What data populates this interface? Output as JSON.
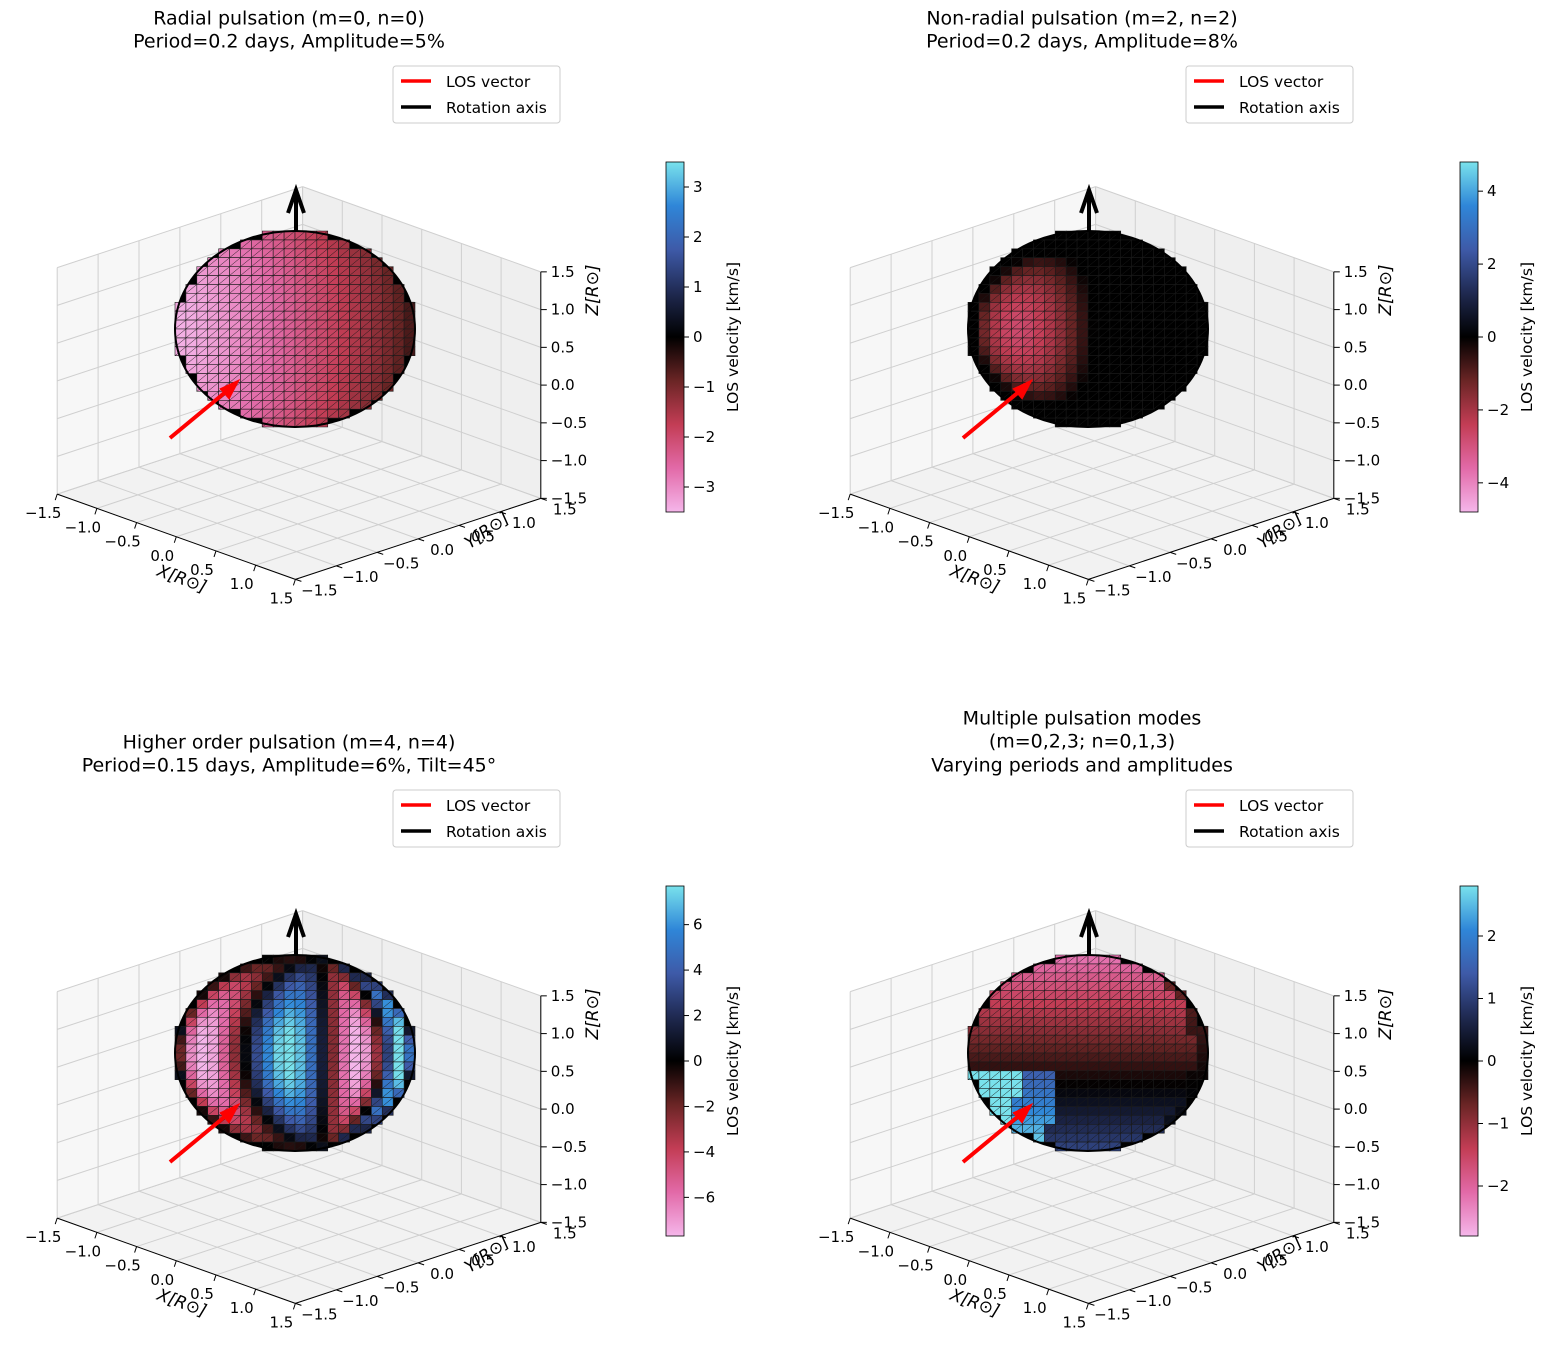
{
  "chart_data": [
    {
      "type": "surface3d",
      "title_lines": [
        "Radial pulsation (m=0, n=0)",
        "Period=0.2 days, Amplitude=5%"
      ],
      "xlabel": "X[R⊙]",
      "ylabel": "Y[R⊙]",
      "zlabel": "Z[R⊙]",
      "xlim": [
        -1.5,
        1.5
      ],
      "ylim": [
        -1.5,
        1.5
      ],
      "zlim": [
        -1.5,
        1.5
      ],
      "ticks": [
        "−1.5",
        "−1.0",
        "−0.5",
        "0.0",
        "0.5",
        "1.0",
        "1.5"
      ],
      "legend": [
        "LOS vector",
        "Rotation axis"
      ],
      "colorbar": {
        "label": "LOS velocity [km/s]",
        "range": [
          -3.5,
          3.5
        ],
        "ticks": [
          "3",
          "2",
          "1",
          "0",
          "−1",
          "−2",
          "−3"
        ],
        "tick_values": [
          3,
          2,
          1,
          0,
          -1,
          -2,
          -3
        ]
      },
      "mode": {
        "m": 0,
        "n": 0,
        "period_days": 0.2,
        "amplitude_pct": 5
      }
    },
    {
      "type": "surface3d",
      "title_lines": [
        "Non-radial pulsation (m=2, n=2)",
        "Period=0.2 days, Amplitude=8%"
      ],
      "xlabel": "X[R⊙]",
      "ylabel": "Y[R⊙]",
      "zlabel": "Z[R⊙]",
      "xlim": [
        -1.5,
        1.5
      ],
      "ylim": [
        -1.5,
        1.5
      ],
      "zlim": [
        -1.5,
        1.5
      ],
      "ticks": [
        "−1.5",
        "−1.0",
        "−0.5",
        "0.0",
        "0.5",
        "1.0",
        "1.5"
      ],
      "legend": [
        "LOS vector",
        "Rotation axis"
      ],
      "colorbar": {
        "label": "LOS velocity [km/s]",
        "range": [
          -4.8,
          4.8
        ],
        "ticks": [
          "4",
          "2",
          "0",
          "−2",
          "−4"
        ],
        "tick_values": [
          4,
          2,
          0,
          -2,
          -4
        ]
      },
      "mode": {
        "m": 2,
        "n": 2,
        "period_days": 0.2,
        "amplitude_pct": 8
      }
    },
    {
      "type": "surface3d",
      "title_lines": [
        "Higher order pulsation (m=4, n=4)",
        "Period=0.15 days, Amplitude=6%, Tilt=45°"
      ],
      "xlabel": "X[R⊙]",
      "ylabel": "Y[R⊙]",
      "zlabel": "Z[R⊙]",
      "xlim": [
        -1.5,
        1.5
      ],
      "ylim": [
        -1.5,
        1.5
      ],
      "zlim": [
        -1.5,
        1.5
      ],
      "ticks": [
        "−1.5",
        "−1.0",
        "−0.5",
        "0.0",
        "0.5",
        "1.0",
        "1.5"
      ],
      "legend": [
        "LOS vector",
        "Rotation axis"
      ],
      "colorbar": {
        "label": "LOS velocity [km/s]",
        "range": [
          -7.7,
          7.7
        ],
        "ticks": [
          "6",
          "4",
          "2",
          "0",
          "−2",
          "−4",
          "−6"
        ],
        "tick_values": [
          6,
          4,
          2,
          0,
          -2,
          -4,
          -6
        ]
      },
      "mode": {
        "m": 4,
        "n": 4,
        "period_days": 0.15,
        "amplitude_pct": 6,
        "tilt_deg": 45
      }
    },
    {
      "type": "surface3d",
      "title_lines": [
        "Multiple pulsation modes",
        "(m=0,2,3; n=0,1,3)",
        "Varying periods and amplitudes"
      ],
      "xlabel": "X[R⊙]",
      "ylabel": "Y[R⊙]",
      "zlabel": "Z[R⊙]",
      "xlim": [
        -1.5,
        1.5
      ],
      "ylim": [
        -1.5,
        1.5
      ],
      "zlim": [
        -1.5,
        1.5
      ],
      "ticks": [
        "−1.5",
        "−1.0",
        "−0.5",
        "0.0",
        "0.5",
        "1.0",
        "1.5"
      ],
      "legend": [
        "LOS vector",
        "Rotation axis"
      ],
      "colorbar": {
        "label": "LOS velocity [km/s]",
        "range": [
          -2.8,
          2.8
        ],
        "ticks": [
          "2",
          "1",
          "0",
          "−1",
          "−2"
        ],
        "tick_values": [
          2,
          1,
          0,
          -1,
          -2
        ]
      },
      "mode": {
        "m_values": [
          0,
          2,
          3
        ],
        "n_values": [
          0,
          1,
          3
        ]
      }
    }
  ],
  "colors": {
    "los_vector": "#ff0000",
    "rotation_axis": "#000000",
    "colormap": [
      "#f5b6ea",
      "#e26aa8",
      "#c33d55",
      "#6b2525",
      "#000000",
      "#1f2950",
      "#3e5aa8",
      "#2f86d8",
      "#79e2ec"
    ]
  }
}
